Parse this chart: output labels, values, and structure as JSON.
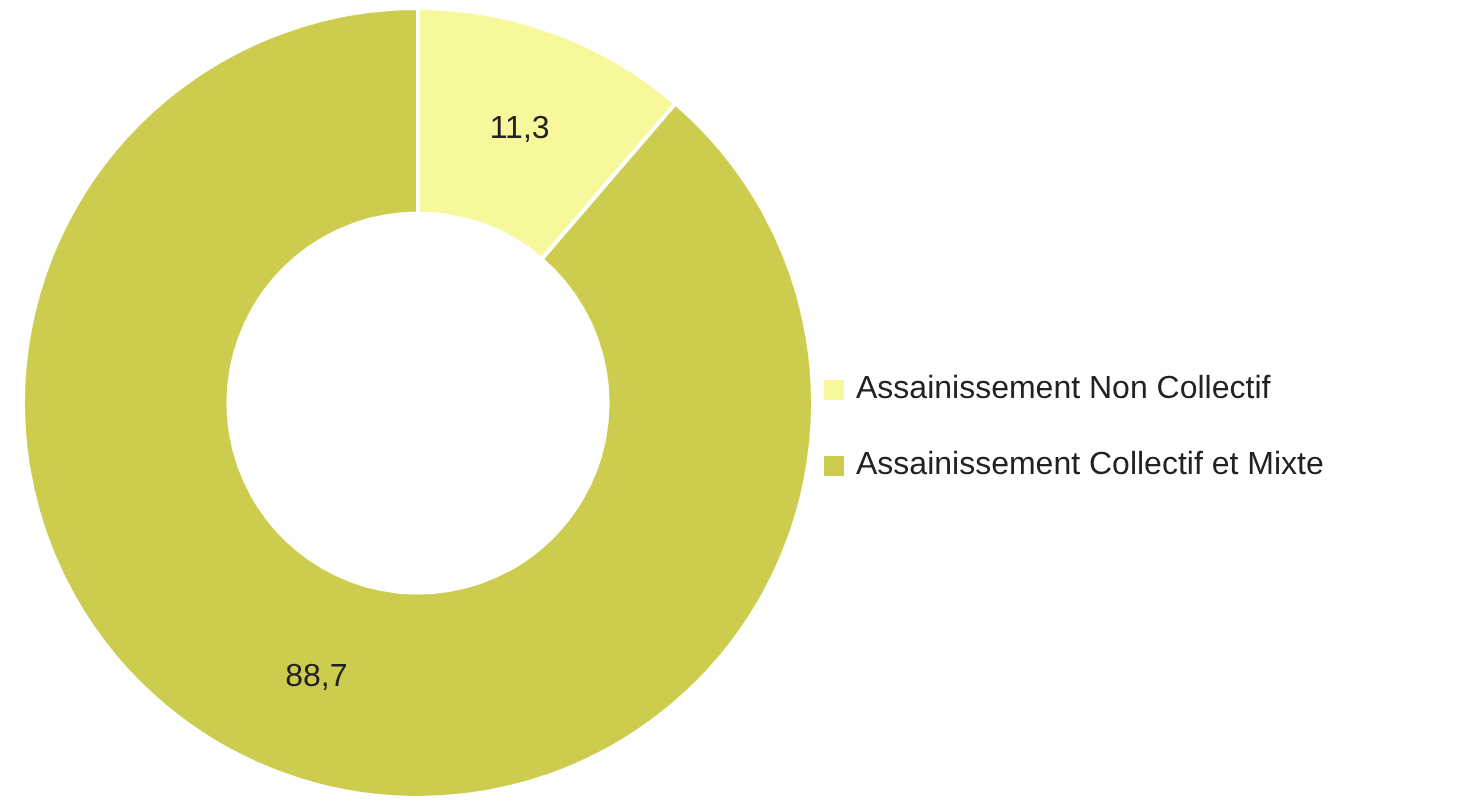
{
  "chart_data": {
    "type": "donut",
    "categories": [
      "Assainissement Non Collectif",
      "Assainissement Collectif et Mixte"
    ],
    "values": [
      11.3,
      88.7
    ],
    "colors": [
      "#f7f79c",
      "#cccc4e"
    ],
    "value_labels": [
      "11,3",
      "88,7"
    ],
    "legend": "right"
  }
}
